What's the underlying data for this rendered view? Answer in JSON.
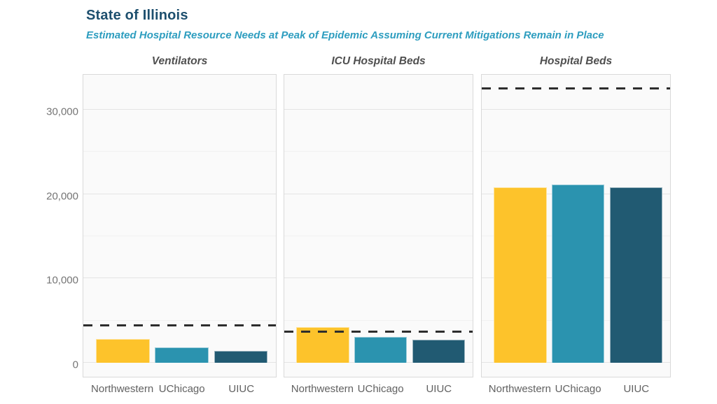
{
  "header": {
    "title": "State of Illinois",
    "subtitle": "Estimated Hospital Resource Needs at Peak of Epidemic Assuming Current Mitigations Remain in Place"
  },
  "chart_data": {
    "type": "bar",
    "title": "State of Illinois",
    "subtitle": "Estimated Hospital Resource Needs at Peak of Epidemic Assuming Current Mitigations Remain in Place",
    "categories": [
      "Northwestern",
      "UChicago",
      "UIUC"
    ],
    "series_colors": [
      "#fdc32b",
      "#2b93af",
      "#215a72"
    ],
    "facets": [
      {
        "title": "Ventilators",
        "values": [
          2800,
          1800,
          1450
        ],
        "capacity_line": 4400
      },
      {
        "title": "ICU Hospital Beds",
        "values": [
          4200,
          3100,
          2700
        ],
        "capacity_line": 3650
      },
      {
        "title": "Hospital Beds",
        "values": [
          20800,
          21100,
          20800
        ],
        "capacity_line": 32500
      }
    ],
    "ylim": [
      0,
      34300
    ],
    "yticks": [
      0,
      10000,
      20000,
      30000
    ],
    "ytick_labels": [
      "0",
      "10,000",
      "20,000",
      "30,000"
    ],
    "minor_yticks": [
      5000,
      15000,
      25000
    ],
    "grid": true,
    "legend_position": "none",
    "capacity_line_style": "dashed"
  },
  "colors": {
    "title": "#1d4f6e",
    "subtitle": "#2d9dbf",
    "dashed_line": "#2d2d2d",
    "panel_bg": "#fafafa",
    "panel_border": "#d9d9d9",
    "axis_text": "#757575"
  }
}
